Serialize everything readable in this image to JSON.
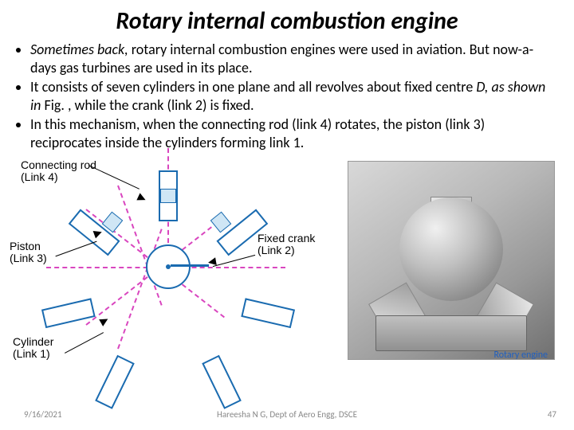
{
  "title": "Rotary internal combustion engine",
  "bullets": [
    {
      "prefix": "Sometimes back,",
      "rest": " rotary internal combustion engines were used in aviation. But now-a-days gas turbines are used in its place."
    },
    {
      "prefix": "",
      "rest": "It consists of seven cylinders in one plane and all revolves about fixed centre <i>D, as shown in</i> Fig. , while the crank (link 2) is fixed."
    },
    {
      "prefix": "",
      "rest": "In this mechanism, when the connecting rod (link 4) rotates, the piston (link 3) reciprocates inside the cylinders forming link 1."
    }
  ],
  "diagram": {
    "labels": {
      "connecting_rod": "Connecting rod\n(Link 4)",
      "piston": "Piston\n(Link 3)",
      "cylinder": "Cylinder\n(Link 1)",
      "fixed_crank": "Fixed crank\n(Link 2)"
    },
    "cylinder_count": 7,
    "colors": {
      "line": "#1a6bb0",
      "dash": "#d946bf",
      "piston_fill": "#cfe6f5"
    }
  },
  "photo": {
    "caption": "Rotary engine",
    "caption_color": "#2060c0"
  },
  "footer": {
    "date": "9/16/2021",
    "author": "Hareesha N G, Dept of Aero Engg, DSCE",
    "page": "47"
  }
}
